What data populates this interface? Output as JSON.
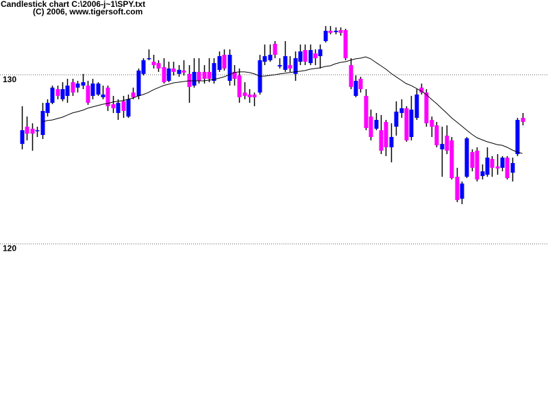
{
  "chart_data": {
    "type": "candlestick",
    "title": "Candlestick chart C:\\2006-j~1\\SPY.txt",
    "subtitle": "(C) 2006, www.tigersoft.com",
    "ylim": [
      110.1,
      134.4
    ],
    "yticks": [
      120,
      130
    ],
    "grid": true,
    "up_color": "#0000ff",
    "down_color": "#ff00ff",
    "wick_color": "#000000",
    "moving_average_color": "#000000",
    "open": [
      125.89,
      126.91,
      126.79,
      126.66,
      126.42,
      127.72,
      128.32,
      129.13,
      128.53,
      128.73,
      129.54,
      129.22,
      129.34,
      129.34,
      128.73,
      128.81,
      128.65,
      129.22,
      128.24,
      127.72,
      128.41,
      127.51,
      128.93,
      128.73,
      130.03,
      130.92,
      130.75,
      130.67,
      130.43,
      129.62,
      130.35,
      130.03,
      130.23,
      130.03,
      129.34,
      130.15,
      130.15,
      130.15,
      129.62,
      130.27,
      131.16,
      129.62,
      130.15,
      129.94,
      128.93,
      128.81,
      128.81,
      128.93,
      130.75,
      130.84,
      131.81,
      130.47,
      130.27,
      130.55,
      130.03,
      130.75,
      131.44,
      130.67,
      131.24,
      131.08,
      131.97,
      132.58,
      132.5,
      132.62,
      132.62,
      130.55,
      128.73,
      129.74,
      128.73,
      127.51,
      126.79,
      126.7,
      127.19,
      125.69,
      126.91,
      127.72,
      128.0,
      126.3,
      127.43,
      129.22,
      128.93,
      127.31,
      126.99,
      125.57,
      126.38,
      126.1,
      123.95,
      122.65,
      123.95,
      125.41,
      125.49,
      123.99,
      124.07,
      125.0,
      124.56,
      124.48,
      125.08,
      124.19,
      125.29,
      127.43
    ],
    "high": [
      128.12,
      127.51,
      127.11,
      126.91,
      128.32,
      128.53,
      129.34,
      129.34,
      129.54,
      129.74,
      129.74,
      129.62,
      130.03,
      129.62,
      129.74,
      129.54,
      129.34,
      129.34,
      128.73,
      128.53,
      128.73,
      128.81,
      129.22,
      130.35,
      130.96,
      131.48,
      131.16,
      130.84,
      130.96,
      130.75,
      130.75,
      130.55,
      130.84,
      130.55,
      130.96,
      130.96,
      130.55,
      130.96,
      130.96,
      131.36,
      131.48,
      131.48,
      130.55,
      130.35,
      129.54,
      129.13,
      128.93,
      131.16,
      131.77,
      131.77,
      131.97,
      130.96,
      131.97,
      131.08,
      131.36,
      131.77,
      131.77,
      131.77,
      131.48,
      131.77,
      132.86,
      132.86,
      132.78,
      132.78,
      132.7,
      130.96,
      129.94,
      129.86,
      129.13,
      127.92,
      127.72,
      127.6,
      127.31,
      127.11,
      128.41,
      128.53,
      128.12,
      128.73,
      129.13,
      129.46,
      129.13,
      127.51,
      127.19,
      126.91,
      126.99,
      126.3,
      124.48,
      123.67,
      126.3,
      125.57,
      125.69,
      124.68,
      125.69,
      125.17,
      125.29,
      125.17,
      125.17,
      125.08,
      127.43,
      127.72
    ],
    "low": [
      125.57,
      126.1,
      125.49,
      126.3,
      126.18,
      127.51,
      128.24,
      128.53,
      128.41,
      128.32,
      128.73,
      128.93,
      129.13,
      128.2,
      128.53,
      128.73,
      128.53,
      127.84,
      127.72,
      127.31,
      127.43,
      127.43,
      128.53,
      128.53,
      129.94,
      130.84,
      130.35,
      130.15,
      129.46,
      129.54,
      129.94,
      129.86,
      129.94,
      128.32,
      129.22,
      129.46,
      129.46,
      129.54,
      129.46,
      130.15,
      130.23,
      129.34,
      129.34,
      128.32,
      128.53,
      128.32,
      128.12,
      128.81,
      130.55,
      130.75,
      130.96,
      130.35,
      130.15,
      130.15,
      129.62,
      130.55,
      130.55,
      130.55,
      130.55,
      130.35,
      131.89,
      132.37,
      132.37,
      132.29,
      130.84,
      129.13,
      128.65,
      128.93,
      126.7,
      126.1,
      126.7,
      125.29,
      125.17,
      124.8,
      126.38,
      127.43,
      126.02,
      126.1,
      127.31,
      128.81,
      126.91,
      126.3,
      125.69,
      123.95,
      125.29,
      123.79,
      122.45,
      122.33,
      123.87,
      124.27,
      123.67,
      123.79,
      123.95,
      123.95,
      124.07,
      124.27,
      123.79,
      123.67,
      125.17,
      126.99
    ],
    "close": [
      126.7,
      126.5,
      126.5,
      126.7,
      127.84,
      128.32,
      129.22,
      128.73,
      129.13,
      129.34,
      128.93,
      129.46,
      129.54,
      128.32,
      129.46,
      129.46,
      128.81,
      128.12,
      128.0,
      128.32,
      127.84,
      128.53,
      128.65,
      130.23,
      130.84,
      130.96,
      130.55,
      130.35,
      129.54,
      130.35,
      130.15,
      130.27,
      130.11,
      129.26,
      130.15,
      129.62,
      129.74,
      129.74,
      130.67,
      131.08,
      130.35,
      131.16,
      129.74,
      128.65,
      128.73,
      128.65,
      128.65,
      130.84,
      131.08,
      131.16,
      131.16,
      130.55,
      131.08,
      130.35,
      130.96,
      131.36,
      130.75,
      131.44,
      130.96,
      131.48,
      132.58,
      132.46,
      132.58,
      132.46,
      130.96,
      129.26,
      129.62,
      129.13,
      126.83,
      126.3,
      127.31,
      125.49,
      125.69,
      126.3,
      127.8,
      128.0,
      126.1,
      127.92,
      128.81,
      128.93,
      127.11,
      126.91,
      125.81,
      125.89,
      125.49,
      123.87,
      122.57,
      123.55,
      126.22,
      124.48,
      123.79,
      124.27,
      125.08,
      124.48,
      124.44,
      125.08,
      123.87,
      124.76,
      127.31,
      127.19
    ],
    "moving_average": [
      null,
      null,
      null,
      null,
      127.19,
      127.27,
      127.31,
      127.39,
      127.47,
      127.6,
      127.72,
      127.8,
      127.88,
      128.0,
      128.08,
      128.16,
      128.24,
      128.28,
      128.37,
      128.41,
      128.45,
      128.53,
      128.61,
      128.73,
      128.81,
      128.93,
      129.09,
      129.22,
      129.34,
      129.42,
      129.5,
      129.54,
      129.58,
      129.62,
      129.62,
      129.62,
      129.62,
      129.66,
      129.7,
      129.78,
      129.86,
      129.98,
      130.11,
      130.15,
      130.15,
      130.11,
      130.03,
      129.9,
      129.9,
      129.94,
      129.98,
      130.03,
      130.07,
      130.11,
      130.15,
      130.19,
      130.23,
      130.31,
      130.35,
      130.39,
      130.47,
      130.51,
      130.63,
      130.71,
      130.75,
      130.84,
      130.92,
      130.96,
      131.04,
      130.92,
      130.71,
      130.51,
      130.31,
      130.07,
      129.86,
      129.66,
      129.46,
      129.34,
      129.18,
      129.01,
      128.81,
      128.53,
      128.28,
      128.0,
      127.72,
      127.43,
      127.19,
      126.95,
      126.7,
      126.46,
      126.26,
      126.14,
      126.02,
      125.94,
      125.85,
      125.81,
      125.69,
      125.53,
      125.41,
      125.33
    ]
  }
}
